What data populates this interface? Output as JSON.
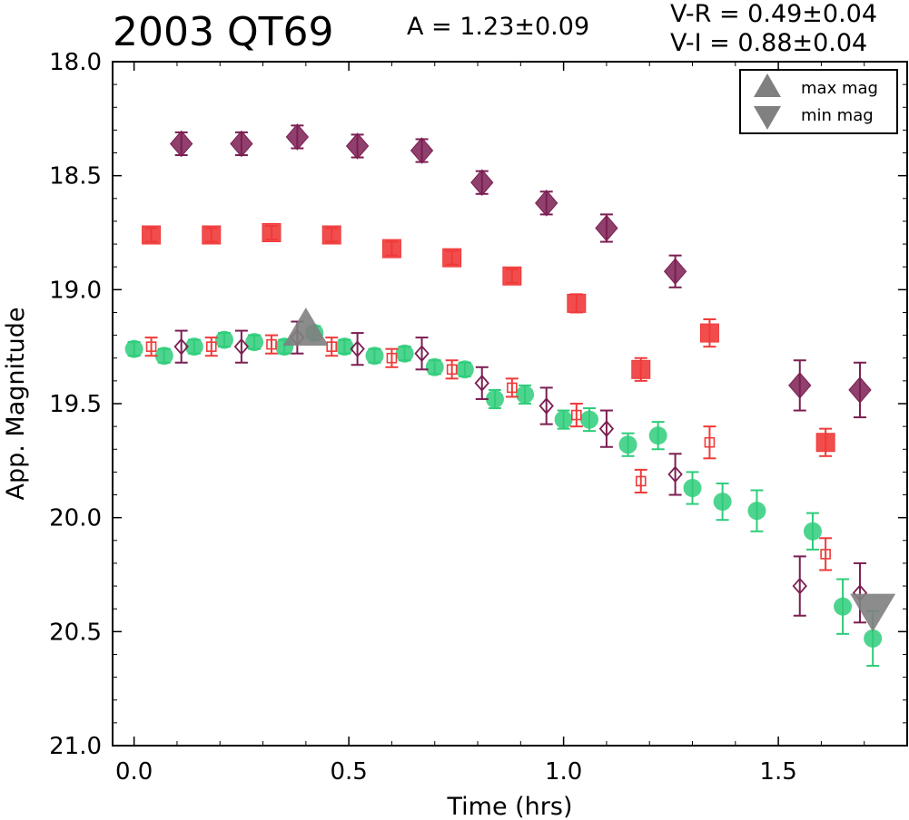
{
  "header": {
    "title": "2003 QT69",
    "amplitude": "A  = 1.23±0.09",
    "color_vr": "V-R = 0.49±0.04",
    "color_vi": "V-I  = 0.88±0.04"
  },
  "chart_data": {
    "type": "scatter",
    "xlabel": "Time (hrs)",
    "ylabel": "App. Magnitude",
    "xlim": [
      -0.05,
      1.8
    ],
    "ylim": [
      21.0,
      18.0
    ],
    "y_inverted": true,
    "xticks": [
      "0.0",
      "0.5",
      "1.0",
      "1.5"
    ],
    "xtick_values": [
      0.0,
      0.5,
      1.0,
      1.5
    ],
    "yticks": [
      "18.0",
      "18.5",
      "19.0",
      "19.5",
      "20.0",
      "20.5",
      "21.0"
    ],
    "ytick_values": [
      18.0,
      18.5,
      19.0,
      19.5,
      20.0,
      20.5,
      21.0
    ],
    "grid": false,
    "legend": {
      "placement": "top-right",
      "entries": [
        {
          "label": "max mag",
          "marker": "triangle-up",
          "color": "#808080"
        },
        {
          "label": "min mag",
          "marker": "triangle-down",
          "color": "#808080"
        }
      ]
    },
    "series": [
      {
        "marker": "diamond-filled",
        "color": "#7b1e52",
        "x": [
          0.11,
          0.25,
          0.38,
          0.52,
          0.67,
          0.81,
          0.96,
          1.1,
          1.26,
          1.55,
          1.69
        ],
        "y": [
          18.36,
          18.36,
          18.33,
          18.37,
          18.39,
          18.53,
          18.62,
          18.73,
          18.92,
          19.42,
          19.44
        ],
        "err": [
          0.05,
          0.05,
          0.05,
          0.05,
          0.05,
          0.05,
          0.05,
          0.06,
          0.07,
          0.11,
          0.12
        ]
      },
      {
        "marker": "square-filled",
        "color": "#f03a3a",
        "x": [
          0.04,
          0.18,
          0.32,
          0.46,
          0.6,
          0.74,
          0.88,
          1.03,
          1.18,
          1.34,
          1.61
        ],
        "y": [
          18.76,
          18.76,
          18.75,
          18.76,
          18.82,
          18.86,
          18.94,
          19.06,
          19.35,
          19.19,
          19.67
        ],
        "err": [
          0.03,
          0.03,
          0.03,
          0.03,
          0.03,
          0.03,
          0.03,
          0.04,
          0.05,
          0.06,
          0.06
        ]
      },
      {
        "marker": "circle-filled",
        "color": "#2ecc7a",
        "x": [
          0.0,
          0.07,
          0.14,
          0.21,
          0.28,
          0.35,
          0.42,
          0.49,
          0.56,
          0.63,
          0.7,
          0.77,
          0.84,
          0.91,
          1.0,
          1.06,
          1.15,
          1.22,
          1.3,
          1.37,
          1.45,
          1.58,
          1.65,
          1.72
        ],
        "y": [
          19.26,
          19.29,
          19.25,
          19.22,
          19.23,
          19.25,
          19.19,
          19.25,
          19.29,
          19.28,
          19.34,
          19.35,
          19.48,
          19.46,
          19.57,
          19.57,
          19.68,
          19.64,
          19.87,
          19.93,
          19.97,
          20.06,
          20.39,
          20.53
        ],
        "err": [
          0.03,
          0.03,
          0.03,
          0.03,
          0.03,
          0.03,
          0.03,
          0.03,
          0.03,
          0.03,
          0.03,
          0.03,
          0.04,
          0.04,
          0.04,
          0.05,
          0.05,
          0.06,
          0.07,
          0.08,
          0.09,
          0.08,
          0.12,
          0.12
        ]
      },
      {
        "marker": "square-open",
        "color": "#f03a3a",
        "x": [
          0.04,
          0.18,
          0.32,
          0.46,
          0.6,
          0.74,
          0.88,
          1.03,
          1.18,
          1.34,
          1.61
        ],
        "y": [
          19.25,
          19.25,
          19.24,
          19.25,
          19.3,
          19.35,
          19.43,
          19.55,
          19.84,
          19.67,
          20.16
        ],
        "err": [
          0.04,
          0.04,
          0.04,
          0.04,
          0.04,
          0.04,
          0.04,
          0.05,
          0.05,
          0.07,
          0.07
        ]
      },
      {
        "marker": "diamond-open",
        "color": "#7b1e52",
        "x": [
          0.11,
          0.25,
          0.38,
          0.52,
          0.67,
          0.81,
          0.96,
          1.1,
          1.26,
          1.55,
          1.69
        ],
        "y": [
          19.25,
          19.25,
          19.21,
          19.26,
          19.28,
          19.41,
          19.51,
          19.61,
          19.81,
          20.3,
          20.33
        ],
        "err": [
          0.07,
          0.07,
          0.07,
          0.07,
          0.07,
          0.07,
          0.08,
          0.08,
          0.09,
          0.13,
          0.13
        ]
      }
    ],
    "annotations": [
      {
        "marker": "triangle-up",
        "color": "#808080",
        "x": 0.4,
        "y": 19.19
      },
      {
        "marker": "triangle-down",
        "color": "#808080",
        "x": 1.72,
        "y": 20.39
      }
    ]
  }
}
